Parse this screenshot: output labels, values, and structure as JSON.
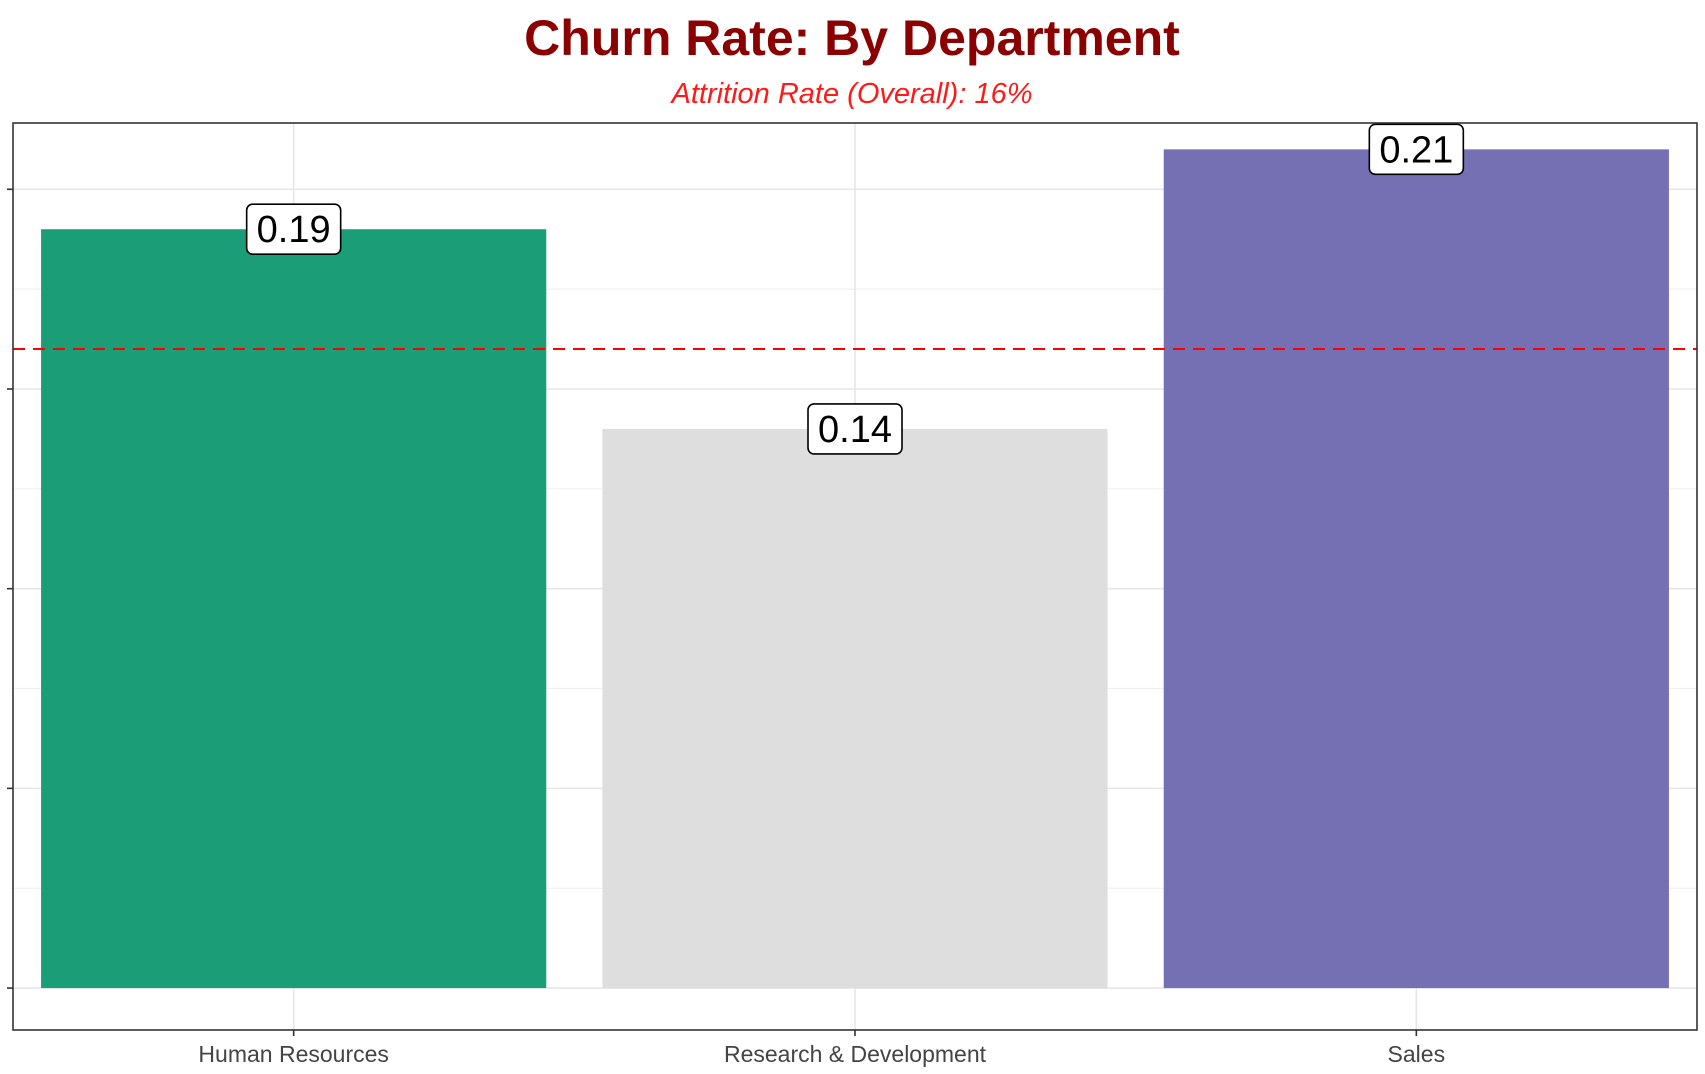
{
  "chart_data": {
    "type": "bar",
    "title": "Churn Rate: By Department",
    "subtitle": "Attrition Rate (Overall): 16%",
    "categories": [
      "Human Resources",
      "Research & Development",
      "Sales"
    ],
    "values": [
      0.19,
      0.14,
      0.21
    ],
    "value_labels": [
      "0.19",
      "0.14",
      "0.21"
    ],
    "bar_colors": [
      "#1b9e77",
      "#dedede",
      "#7570b3"
    ],
    "reference_line": {
      "value": 0.16,
      "color": "#ff0000",
      "style": "dashed"
    },
    "ylim": [
      -0.0105,
      0.2166
    ],
    "y_major_ticks": [
      0.0,
      0.05,
      0.1,
      0.15,
      0.2
    ],
    "y_tick_labels_shown": false,
    "xlabel": "",
    "ylabel": "",
    "grid": true,
    "legend": "none"
  },
  "colors": {
    "title": "#8b0000",
    "subtitle": "#ff1a1a",
    "panel_border": "#333333",
    "grid": "#e6e6e6"
  }
}
